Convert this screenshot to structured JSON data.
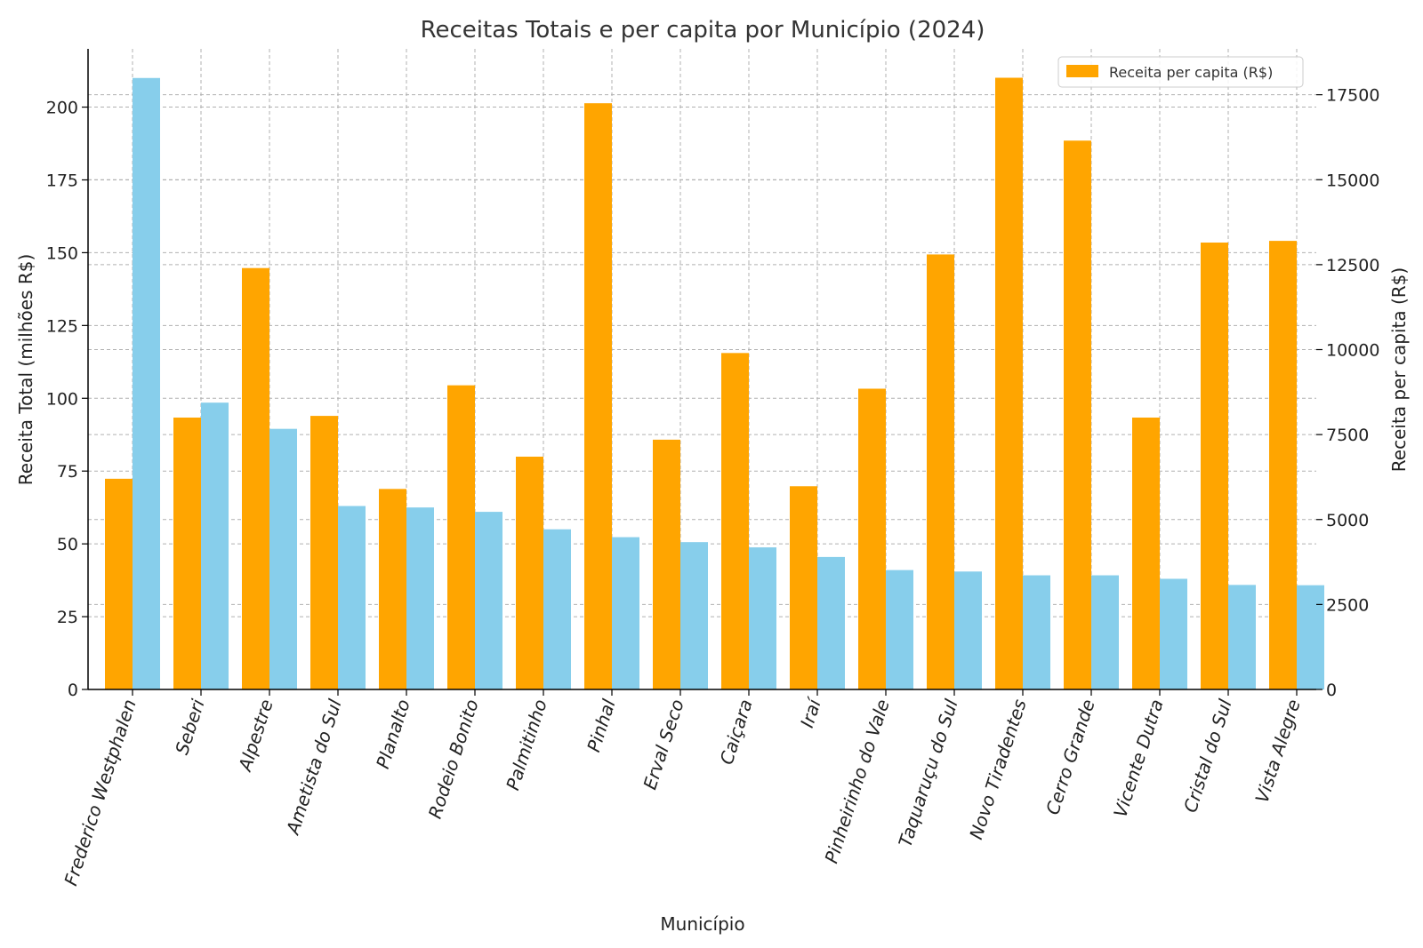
{
  "chart_data": {
    "type": "bar",
    "title": "Receitas Totais e per capita por Município (2024)",
    "xlabel": "Município",
    "ylabel_left": "Receita Total (milhões R$)",
    "ylabel_right": "Receita per capita (R$)",
    "categories": [
      "Frederico Westphalen",
      "Seberi",
      "Alpestre",
      "Ametista do Sul",
      "Planalto",
      "Rodeio Bonito",
      "Palmitinho",
      "Pinhal",
      "Erval Seco",
      "Caiçara",
      "Iraí",
      "Pinheirinho do Vale",
      "Taquaruçu do Sul",
      "Novo Tiradentes",
      "Cerro Grande",
      "Vicente Dutra",
      "Cristal do Sul",
      "Vista Alegre"
    ],
    "series": [
      {
        "name": "Receita per capita (R$)",
        "axis": "right",
        "color": "#FFA500",
        "values": [
          6200,
          8000,
          12400,
          8050,
          5900,
          8950,
          6850,
          17250,
          7350,
          9900,
          5980,
          8850,
          12800,
          18000,
          16150,
          8000,
          13150,
          13200
        ]
      },
      {
        "name": "Receita Total (milhões R$)",
        "axis": "left",
        "color": "#87CEEB",
        "values": [
          210,
          98.5,
          89.5,
          63,
          62.5,
          61,
          55,
          52.3,
          50.6,
          48.8,
          45.5,
          41,
          40.5,
          39.2,
          39.2,
          38,
          35.9,
          35.8
        ]
      }
    ],
    "ylim_left": [
      0,
      220
    ],
    "ylim_right": [
      0,
      18850
    ],
    "yticks_left": [
      0,
      25,
      50,
      75,
      100,
      125,
      150,
      175,
      200
    ],
    "yticks_right": [
      0,
      2500,
      5000,
      7500,
      10000,
      12500,
      15000,
      17500
    ],
    "grid": true,
    "legend": {
      "position": "top-right",
      "entries": [
        "Receita per capita (R$)"
      ]
    }
  }
}
